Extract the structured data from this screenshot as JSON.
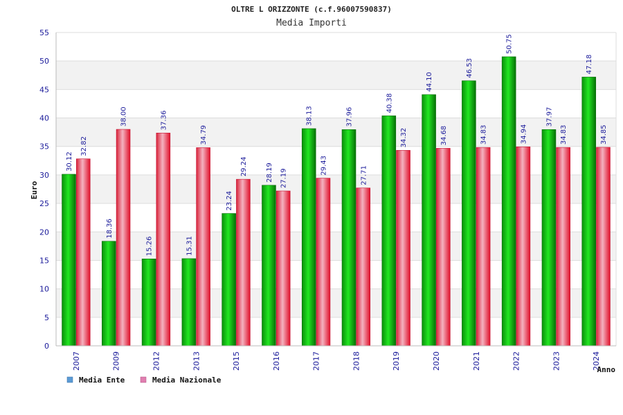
{
  "chart_data": {
    "type": "bar",
    "title": "OLTRE L ORIZZONTE (c.f.96007590837)",
    "subtitle": "Media Importi",
    "xlabel": "Anno",
    "ylabel": "Euro",
    "ylim": [
      0,
      55
    ],
    "yticks": [
      0,
      5,
      10,
      15,
      20,
      25,
      30,
      35,
      40,
      45,
      50,
      55
    ],
    "grid": true,
    "legend_position": "bottom-left",
    "categories": [
      "2007",
      "2009",
      "2012",
      "2013",
      "2015",
      "2016",
      "2017",
      "2018",
      "2019",
      "2020",
      "2021",
      "2022",
      "2023",
      "2024"
    ],
    "series": [
      {
        "name": "Media Ente",
        "color": "#00aa00",
        "legend_color": "#5b9bd5",
        "values": [
          30.12,
          18.36,
          15.26,
          15.31,
          23.24,
          28.19,
          38.13,
          37.96,
          40.38,
          44.1,
          46.53,
          50.75,
          37.97,
          47.18
        ],
        "labels": [
          "30.12",
          "18.36",
          "15.26",
          "15.31",
          "23.24",
          "28.19",
          "38.13",
          "37.96",
          "40.38",
          "44.10",
          "46.53",
          "50.75",
          "37.97",
          "47.18"
        ]
      },
      {
        "name": "Media Nazionale",
        "color": "#e8303a",
        "legend_color": "#e07fb0",
        "values": [
          32.82,
          38.0,
          37.36,
          34.79,
          29.24,
          27.19,
          29.43,
          27.71,
          34.32,
          34.68,
          34.83,
          34.94,
          34.83,
          34.85
        ],
        "labels": [
          "32.82",
          "38.00",
          "37.36",
          "34.79",
          "29.24",
          "27.19",
          "29.43",
          "27.71",
          "34.32",
          "34.68",
          "34.83",
          "34.94",
          "34.83",
          "34.85"
        ]
      }
    ]
  }
}
